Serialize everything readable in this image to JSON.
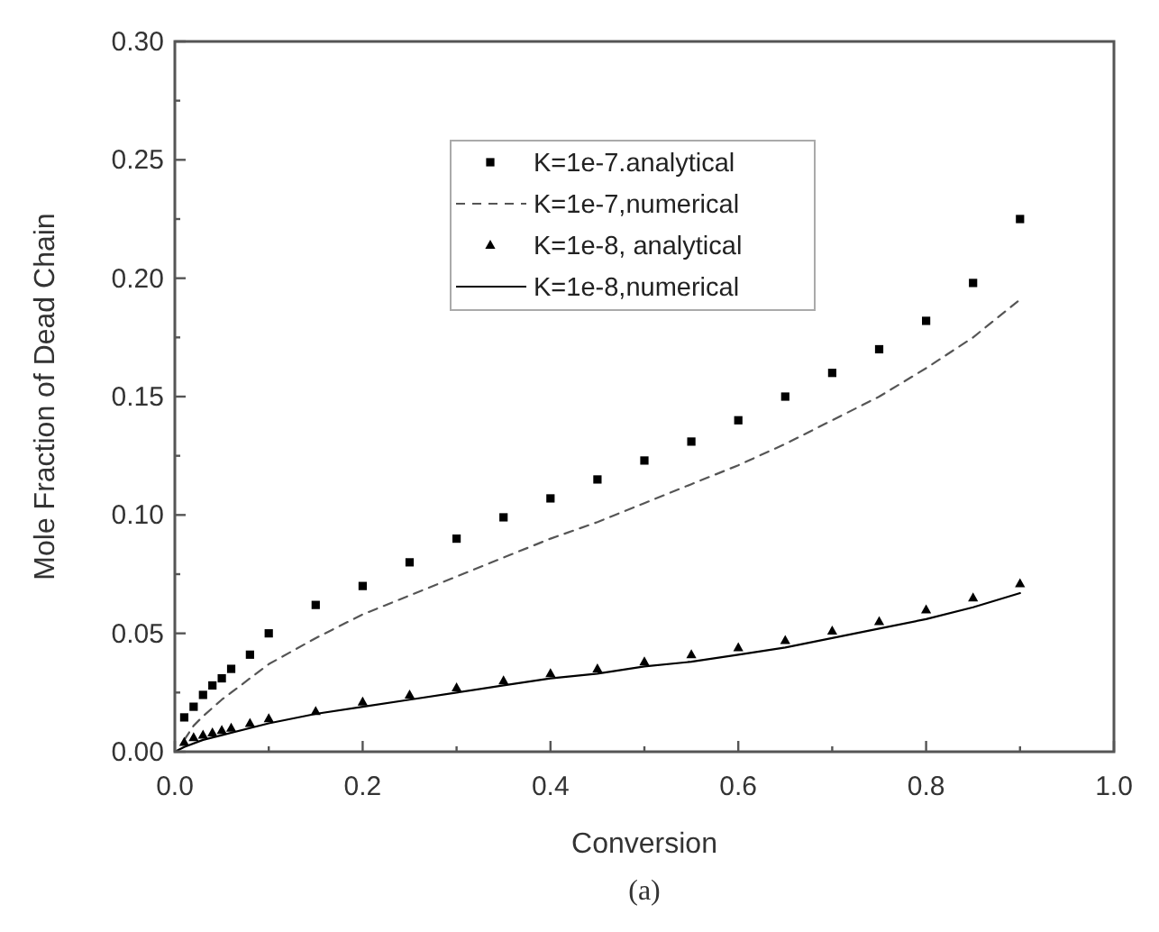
{
  "chart_data": {
    "type": "line",
    "xlabel": "Conversion",
    "ylabel": "Mole Fraction of Dead Chain",
    "annotations": [
      "(a)"
    ],
    "xlim": [
      0,
      1
    ],
    "ylim": [
      0,
      0.3
    ],
    "xticks": [
      {
        "value": 0,
        "label": "0.0"
      },
      {
        "value": 0.1,
        "label": null
      },
      {
        "value": 0.2,
        "label": "0.2"
      },
      {
        "value": 0.3,
        "label": null
      },
      {
        "value": 0.4,
        "label": "0.4"
      },
      {
        "value": 0.5,
        "label": null
      },
      {
        "value": 0.6,
        "label": "0.6"
      },
      {
        "value": 0.7,
        "label": null
      },
      {
        "value": 0.8,
        "label": "0.8"
      },
      {
        "value": 0.9,
        "label": null
      },
      {
        "value": 1,
        "label": "1.0"
      }
    ],
    "yticks": [
      {
        "value": 0,
        "label": "0.00"
      },
      {
        "value": 0.025,
        "label": null
      },
      0.05,
      {
        "value": 0.075,
        "label": null
      },
      {
        "value": 0.1,
        "label": "0.10"
      },
      {
        "value": 0.125,
        "label": null
      },
      0.15,
      {
        "value": 0.175,
        "label": null
      },
      {
        "value": 0.2,
        "label": "0.20"
      },
      {
        "value": 0.225,
        "label": null
      },
      0.25,
      {
        "value": 0.275,
        "label": null
      },
      {
        "value": 0.3,
        "label": "0.30"
      }
    ],
    "grid": false,
    "legend": "top",
    "series": [
      {
        "name": "K=1e-7.analytical",
        "type": "scatter",
        "marker": "square",
        "color": "#000000",
        "x": [
          0.01,
          0.02,
          0.03,
          0.04,
          0.05,
          0.06,
          0.08,
          0.1,
          0.15,
          0.2,
          0.25,
          0.3,
          0.35,
          0.4,
          0.45,
          0.5,
          0.55,
          0.6,
          0.65,
          0.7,
          0.75,
          0.8,
          0.85,
          0.9
        ],
        "values": [
          0.0145,
          0.019,
          0.024,
          0.028,
          0.031,
          0.035,
          0.041,
          0.05,
          0.062,
          0.07,
          0.08,
          0.09,
          0.099,
          0.107,
          0.115,
          0.123,
          0.131,
          0.14,
          0.15,
          0.16,
          0.17,
          0.182,
          0.198,
          0.225
        ]
      },
      {
        "name": "K=1e-7,numerical",
        "line_style": "dashed",
        "color": "#555555",
        "x": [
          0.01,
          0.02,
          0.03,
          0.05,
          0.08,
          0.1,
          0.15,
          0.2,
          0.25,
          0.3,
          0.35,
          0.4,
          0.45,
          0.5,
          0.55,
          0.6,
          0.65,
          0.7,
          0.75,
          0.8,
          0.85,
          0.9
        ],
        "values": [
          0.005,
          0.011,
          0.015,
          0.022,
          0.031,
          0.037,
          0.048,
          0.058,
          0.066,
          0.074,
          0.082,
          0.09,
          0.097,
          0.105,
          0.113,
          0.121,
          0.13,
          0.14,
          0.15,
          0.162,
          0.175,
          0.191
        ]
      },
      {
        "name": "K=1e-8, analytical",
        "type": "scatter",
        "marker": "triangle",
        "color": "#000000",
        "x": [
          0.01,
          0.02,
          0.03,
          0.04,
          0.05,
          0.06,
          0.08,
          0.1,
          0.15,
          0.2,
          0.25,
          0.3,
          0.35,
          0.4,
          0.45,
          0.5,
          0.55,
          0.6,
          0.65,
          0.7,
          0.75,
          0.8,
          0.85,
          0.9
        ],
        "values": [
          0.004,
          0.006,
          0.007,
          0.008,
          0.009,
          0.01,
          0.012,
          0.014,
          0.017,
          0.021,
          0.024,
          0.027,
          0.03,
          0.033,
          0.035,
          0.038,
          0.041,
          0.044,
          0.047,
          0.051,
          0.055,
          0.06,
          0.065,
          0.071
        ]
      },
      {
        "name": "K=1e-8,numerical",
        "line_style": "solid",
        "color": "#000000",
        "x": [
          0,
          0.01,
          0.03,
          0.05,
          0.1,
          0.15,
          0.2,
          0.25,
          0.3,
          0.35,
          0.4,
          0.45,
          0.5,
          0.55,
          0.6,
          0.65,
          0.7,
          0.75,
          0.8,
          0.85,
          0.9
        ],
        "values": [
          0,
          0.002,
          0.005,
          0.007,
          0.012,
          0.016,
          0.019,
          0.022,
          0.025,
          0.028,
          0.031,
          0.033,
          0.036,
          0.038,
          0.041,
          0.044,
          0.048,
          0.052,
          0.056,
          0.061,
          0.067
        ]
      }
    ]
  }
}
